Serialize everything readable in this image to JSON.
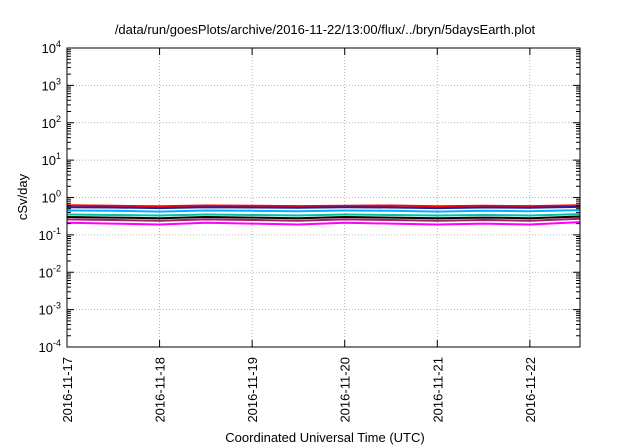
{
  "chart_data": {
    "type": "line",
    "title": "/data/run/goesPlots/archive/2016-11-22/13:00/flux/../bryn/5daysEarth.plot",
    "xlabel": "Coordinated Universal Time (UTC)",
    "ylabel": "cSv/day",
    "y_scale": "log",
    "ylim": [
      0.0001,
      10000
    ],
    "yticks": [
      {
        "base": "10",
        "exp": "4"
      },
      {
        "base": "10",
        "exp": "3"
      },
      {
        "base": "10",
        "exp": "2"
      },
      {
        "base": "10",
        "exp": "1"
      },
      {
        "base": "10",
        "exp": "0"
      },
      {
        "base": "10",
        "exp": "-1"
      },
      {
        "base": "10",
        "exp": "-2"
      },
      {
        "base": "10",
        "exp": "-3"
      },
      {
        "base": "10",
        "exp": "-4"
      }
    ],
    "xlim": [
      "2016-11-17 00:00",
      "2016-11-22 13:00"
    ],
    "xticks": [
      "2016-11-17",
      "2016-11-18",
      "2016-11-19",
      "2016-11-20",
      "2016-11-21",
      "2016-11-22"
    ],
    "grid": true,
    "x": [
      "2016-11-17 00:00",
      "2016-11-17 12:00",
      "2016-11-18 00:00",
      "2016-11-18 12:00",
      "2016-11-19 00:00",
      "2016-11-19 12:00",
      "2016-11-20 00:00",
      "2016-11-20 12:00",
      "2016-11-21 00:00",
      "2016-11-21 12:00",
      "2016-11-22 00:00",
      "2016-11-22 13:00"
    ],
    "series": [
      {
        "color": "#ff0000",
        "values": [
          0.62,
          0.6,
          0.58,
          0.61,
          0.6,
          0.59,
          0.6,
          0.61,
          0.58,
          0.6,
          0.59,
          0.62
        ]
      },
      {
        "color": "#2020a0",
        "values": [
          0.55,
          0.54,
          0.52,
          0.55,
          0.54,
          0.53,
          0.55,
          0.54,
          0.52,
          0.54,
          0.53,
          0.56
        ]
      },
      {
        "color": "#00b0ff",
        "values": [
          0.45,
          0.44,
          0.42,
          0.45,
          0.44,
          0.43,
          0.45,
          0.44,
          0.42,
          0.44,
          0.43,
          0.46
        ]
      },
      {
        "color": "#00c0a0",
        "values": [
          0.35,
          0.34,
          0.33,
          0.35,
          0.34,
          0.33,
          0.35,
          0.34,
          0.33,
          0.34,
          0.33,
          0.36
        ]
      },
      {
        "color": "#000000",
        "values": [
          0.3,
          0.29,
          0.28,
          0.3,
          0.29,
          0.28,
          0.3,
          0.29,
          0.28,
          0.29,
          0.28,
          0.31
        ]
      },
      {
        "color": "#a02060",
        "values": [
          0.26,
          0.25,
          0.24,
          0.26,
          0.25,
          0.24,
          0.26,
          0.25,
          0.24,
          0.25,
          0.24,
          0.27
        ]
      },
      {
        "color": "#ff00ff",
        "values": [
          0.21,
          0.2,
          0.19,
          0.21,
          0.2,
          0.19,
          0.21,
          0.2,
          0.19,
          0.2,
          0.19,
          0.22
        ]
      }
    ]
  }
}
